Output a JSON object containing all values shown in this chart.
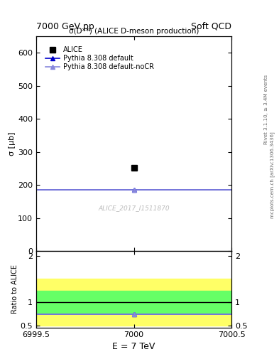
{
  "title_top": "7000 GeV pp",
  "title_right": "Soft QCD",
  "main_title": "σ(D**) (ALICE D-meson production)",
  "watermark": "ALICE_2017_I1511870",
  "right_label1": "Rivet 3.1.10, ≥ 3.4M events",
  "right_label2": "mcplots.cern.ch [arXiv:1306.3436]",
  "xlabel": "E = 7 TeV",
  "ylabel_main": "σ [μb]",
  "ylabel_ratio": "Ratio to ALICE",
  "xlim": [
    6999.5,
    7000.5
  ],
  "ylim_main": [
    0,
    650
  ],
  "ylim_ratio": [
    0.45,
    2.1
  ],
  "yticks_main": [
    0,
    100,
    200,
    300,
    400,
    500,
    600
  ],
  "yticks_ratio": [
    0.5,
    1.0,
    2.0
  ],
  "xticks": [
    6999.5,
    7000.0,
    7000.5
  ],
  "alice_x": 7000.0,
  "alice_y": 252,
  "alice_color": "#000000",
  "alice_marker": "s",
  "alice_label": "ALICE",
  "pythia_default_y": 185,
  "pythia_default_color": "#0000cc",
  "pythia_default_label": "Pythia 8.308 default",
  "pythia_nocr_y": 185,
  "pythia_nocr_color": "#8888dd",
  "pythia_nocr_label": "Pythia 8.308 default-noCR",
  "ratio_default": 0.735,
  "ratio_nocr": 0.735,
  "band_yellow_low": 0.5,
  "band_yellow_high": 1.5,
  "band_green_low": 0.75,
  "band_green_high": 1.25,
  "band_yellow_color": "#ffff66",
  "band_green_color": "#66ff66",
  "bg_color": "#ffffff"
}
